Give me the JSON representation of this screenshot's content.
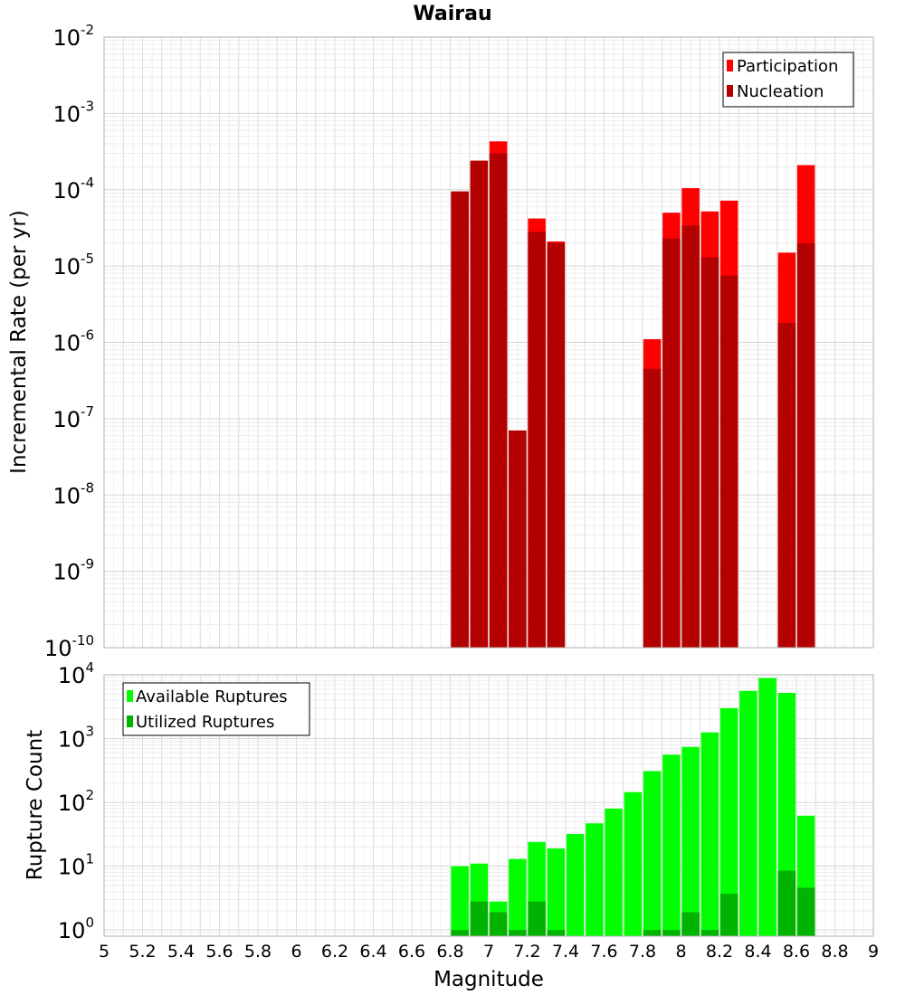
{
  "chart_data": [
    {
      "type": "bar",
      "title": "Wairau",
      "xlabel": "",
      "ylabel": "Incremental Rate (per yr)",
      "yscale": "log",
      "ylim": [
        1e-10,
        0.01
      ],
      "xlim": [
        5,
        9
      ],
      "grid": true,
      "legend_position": "top-right",
      "y_tick_labels": [
        {
          "base": "10",
          "exp": "-10"
        },
        {
          "base": "10",
          "exp": "-9"
        },
        {
          "base": "10",
          "exp": "-8"
        },
        {
          "base": "10",
          "exp": "-7"
        },
        {
          "base": "10",
          "exp": "-6"
        },
        {
          "base": "10",
          "exp": "-5"
        },
        {
          "base": "10",
          "exp": "-4"
        },
        {
          "base": "10",
          "exp": "-3"
        },
        {
          "base": "10",
          "exp": "-2"
        }
      ],
      "series": [
        {
          "name": "Participation",
          "color": "#ff0000",
          "x": [
            6.85,
            6.95,
            7.05,
            7.15,
            7.25,
            7.35,
            7.85,
            7.95,
            8.05,
            8.15,
            8.25,
            8.55,
            8.65
          ],
          "values": [
            9.5e-05,
            0.00024,
            0.00043,
            7e-08,
            4.2e-05,
            2.1e-05,
            1.1e-06,
            5e-05,
            0.000105,
            5.2e-05,
            7.2e-05,
            1.5e-05,
            0.00021
          ]
        },
        {
          "name": "Nucleation",
          "color": "#b30000",
          "x": [
            6.85,
            6.95,
            7.05,
            7.15,
            7.25,
            7.35,
            7.85,
            7.95,
            8.05,
            8.15,
            8.25,
            8.55,
            8.65
          ],
          "values": [
            9.5e-05,
            0.00024,
            0.0003,
            7e-08,
            2.8e-05,
            2e-05,
            4.5e-07,
            2.3e-05,
            3.4e-05,
            1.3e-05,
            7.5e-06,
            1.8e-06,
            2e-05
          ]
        }
      ]
    },
    {
      "type": "bar",
      "xlabel": "Magnitude",
      "ylabel": "Rupture Count",
      "yscale": "log",
      "ylim": [
        0.8,
        10000
      ],
      "xlim": [
        5,
        9
      ],
      "grid": true,
      "legend_position": "top-left",
      "x_tick_labels": [
        "5",
        "5.2",
        "5.4",
        "5.6",
        "5.8",
        "6",
        "6.2",
        "6.4",
        "6.6",
        "6.8",
        "7",
        "7.2",
        "7.4",
        "7.6",
        "7.8",
        "8",
        "8.2",
        "8.4",
        "8.6",
        "8.8",
        "9"
      ],
      "y_tick_labels": [
        {
          "base": "10",
          "exp": "0"
        },
        {
          "base": "10",
          "exp": "1"
        },
        {
          "base": "10",
          "exp": "2"
        },
        {
          "base": "10",
          "exp": "3"
        },
        {
          "base": "10",
          "exp": "4"
        }
      ],
      "series": [
        {
          "name": "Available Ruptures",
          "color": "#00ff00",
          "x": [
            6.85,
            6.95,
            7.05,
            7.15,
            7.25,
            7.35,
            7.45,
            7.55,
            7.65,
            7.75,
            7.85,
            7.95,
            8.05,
            8.15,
            8.25,
            8.35,
            8.45,
            8.55,
            8.65
          ],
          "values": [
            10,
            11,
            2.8,
            13,
            24,
            19,
            32,
            47,
            80,
            145,
            310,
            560,
            740,
            1250,
            3000,
            5600,
            8900,
            5200,
            62
          ]
        },
        {
          "name": "Utilized Ruptures",
          "color": "#00b300",
          "x": [
            6.85,
            6.95,
            7.05,
            7.15,
            7.25,
            7.35,
            7.85,
            7.95,
            8.05,
            8.15,
            8.25,
            8.55,
            8.65
          ],
          "values": [
            1,
            2.8,
            1.9,
            1,
            2.8,
            1,
            1,
            1,
            1.9,
            1,
            3.7,
            8.5,
            4.6
          ]
        }
      ]
    }
  ]
}
